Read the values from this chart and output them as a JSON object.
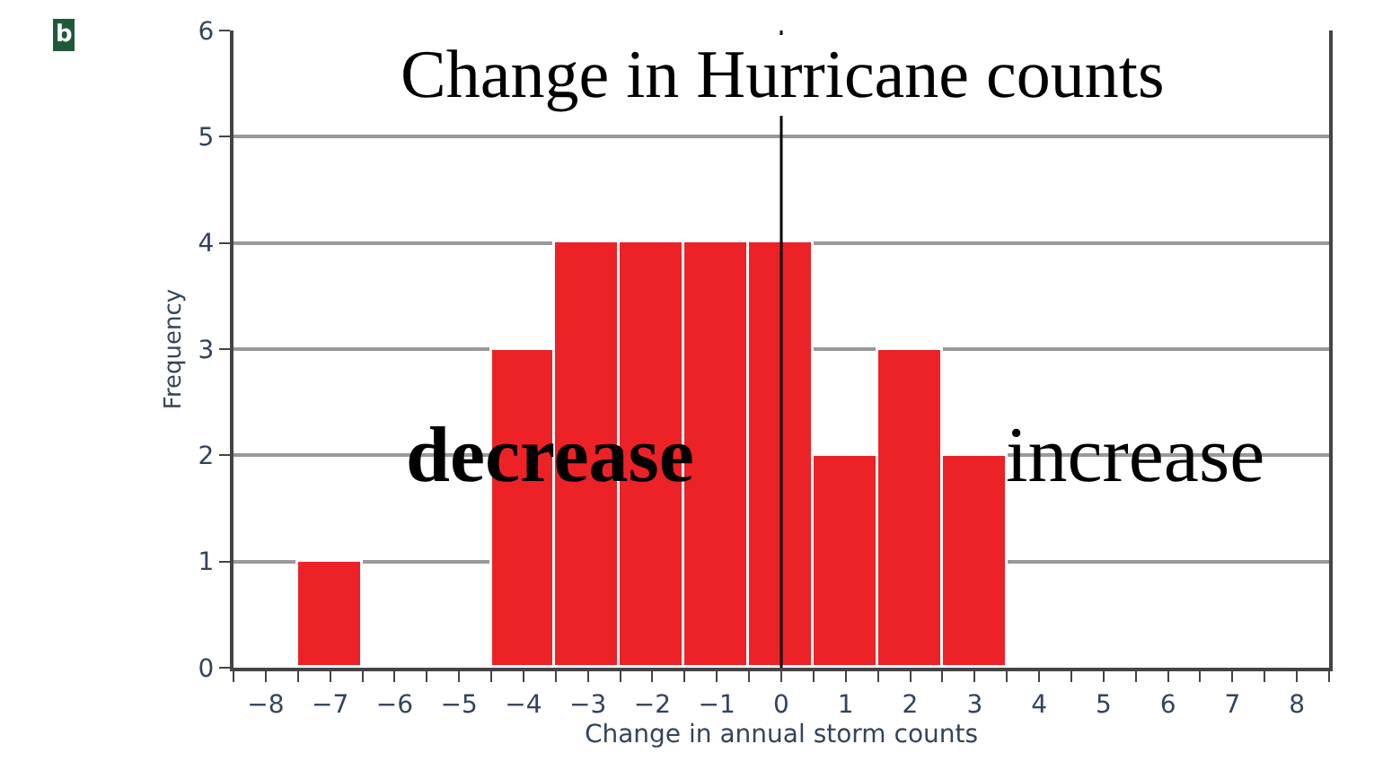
{
  "chart_data": {
    "type": "histogram",
    "title": "Change in Hurricane counts",
    "xlabel": "Change in annual storm counts",
    "ylabel": "Frequency",
    "bins": [
      -8.5,
      -7.5,
      -6.5,
      -5.5,
      -4.5,
      -3.5,
      -2.5,
      -1.5,
      -0.5,
      0.5,
      1.5,
      2.5,
      3.5,
      4.5,
      5.5,
      6.5,
      7.5,
      8.5
    ],
    "values": [
      0,
      1,
      0,
      0,
      3,
      4,
      4,
      4,
      4,
      2,
      3,
      2,
      0,
      0,
      0,
      0,
      0
    ],
    "color": "#ec2227",
    "xlim": [
      -8.5,
      8.5
    ],
    "xticks": [
      -8,
      -7,
      -6,
      -5,
      -4,
      -3,
      -2,
      -1,
      0,
      1,
      2,
      3,
      4,
      5,
      6,
      7,
      8,
      {
        "value": -8.5,
        "label": null
      },
      {
        "value": -7.5,
        "label": null
      },
      {
        "value": -6.5,
        "label": null
      },
      {
        "value": -5.5,
        "label": null
      },
      {
        "value": -4.5,
        "label": null
      },
      {
        "value": -3.5,
        "label": null
      },
      {
        "value": -2.5,
        "label": null
      },
      {
        "value": -1.5,
        "label": null
      },
      {
        "value": -0.5,
        "label": null
      },
      {
        "value": 0.5,
        "label": null
      },
      {
        "value": 1.5,
        "label": null
      },
      {
        "value": 2.5,
        "label": null
      },
      {
        "value": 3.5,
        "label": null
      },
      {
        "value": 4.5,
        "label": null
      },
      {
        "value": 5.5,
        "label": null
      },
      {
        "value": 6.5,
        "label": null
      },
      {
        "value": 7.5,
        "label": null
      },
      {
        "value": 8.5,
        "label": null
      }
    ],
    "ylim": [
      0,
      6
    ],
    "yticks": [
      0,
      1,
      2,
      3,
      4,
      5,
      6
    ],
    "grid": "y",
    "ref_lines": [
      {
        "axis": "x",
        "value": 0,
        "color": "#000000"
      }
    ],
    "annotations": [
      "b",
      "decrease",
      "increase"
    ]
  }
}
